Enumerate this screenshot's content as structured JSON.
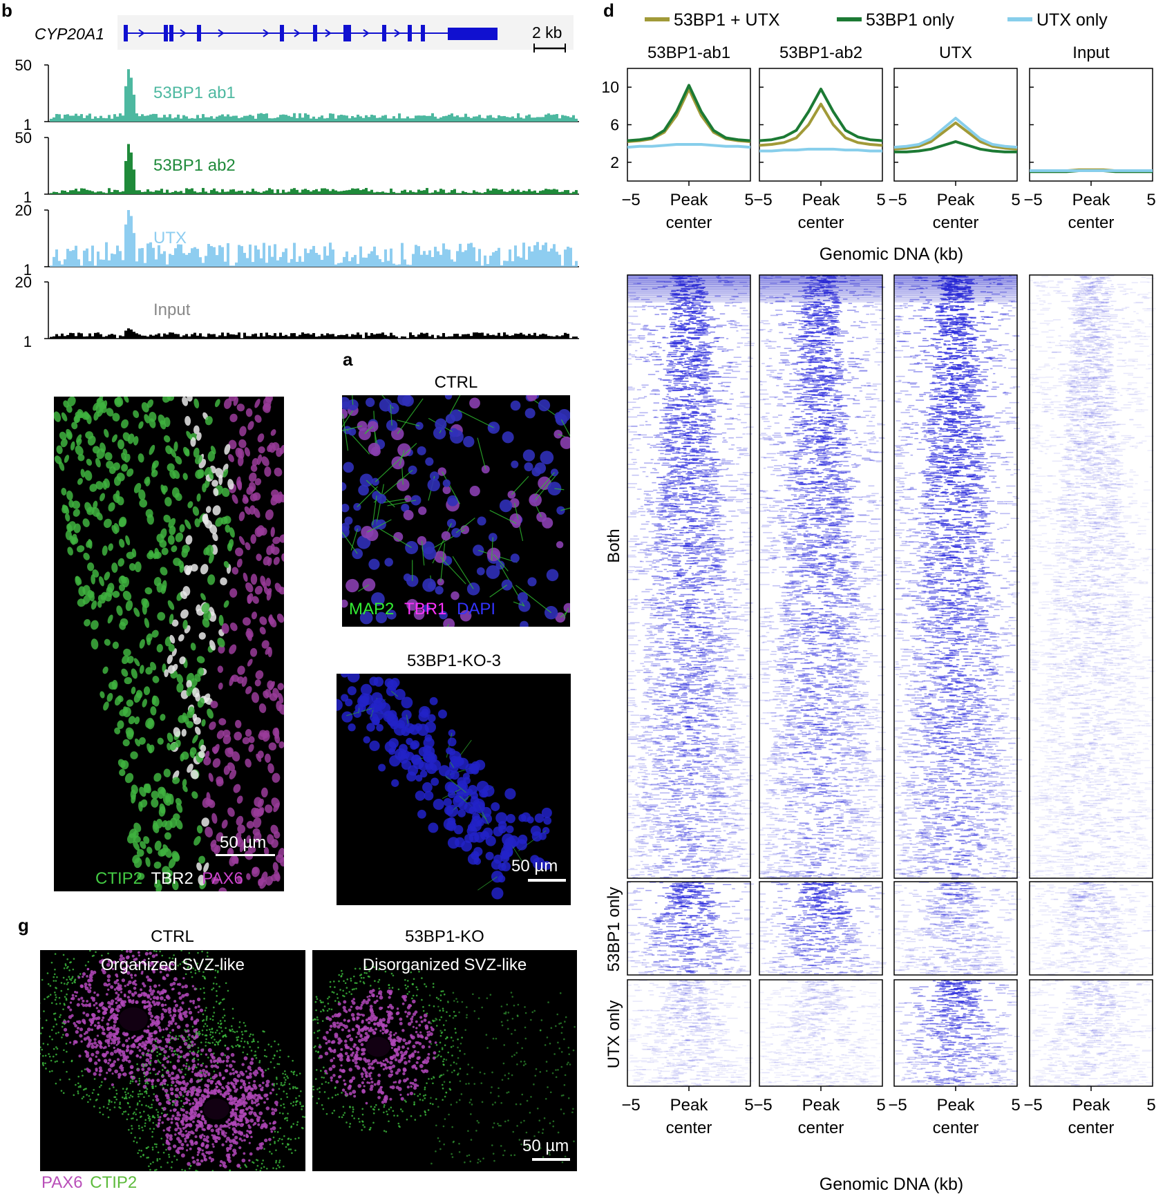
{
  "panel_b": {
    "letter": "b",
    "gene": "CYP20A1",
    "scale": "2 kb",
    "tracks": [
      {
        "label": "53BP1 ab1",
        "ymax": "50",
        "ymin": "1",
        "color": "#4db8a0",
        "peak": 0.9,
        "base": 0.1,
        "noise": 0.05
      },
      {
        "label": "53BP1 ab2",
        "ymax": "50",
        "ymin": "1",
        "color": "#1f8a3a",
        "peak": 0.9,
        "base": 0.06,
        "noise": 0.05
      },
      {
        "label": "UTX",
        "ymax": "20",
        "ymin": "1",
        "color": "#8ecdf0",
        "peak": 0.9,
        "base": 0.22,
        "noise": 0.22
      },
      {
        "label": "Input",
        "ymax": "20",
        "ymin": "1",
        "color": "#000000",
        "peak": 0.12,
        "base": 0.07,
        "noise": 0.04
      }
    ]
  },
  "panel_a": {
    "letter": "a",
    "ctrl_title": "CTRL",
    "ko_title": "53BP1-KO-3",
    "markers": [
      {
        "text": "MAP2",
        "color": "#33ee33"
      },
      {
        "text": "TBR1",
        "color": "#ff33ff"
      },
      {
        "text": "DAPI",
        "color": "#3333ff"
      }
    ],
    "scale": "50 µm"
  },
  "panel_left": {
    "markers": [
      {
        "text": "CTIP2",
        "color": "#44cc44"
      },
      {
        "text": "TBR2",
        "color": "#ffffff"
      },
      {
        "text": "PAX6",
        "color": "#cc44cc"
      }
    ],
    "scale": "50 µm"
  },
  "panel_g": {
    "letter": "g",
    "ctrl_title": "CTRL",
    "ko_title": "53BP1-KO",
    "ctrl_caption": "Organized SVZ-like",
    "ko_caption": "Disorganized SVZ-like",
    "scale": "50 µm",
    "legend": [
      {
        "text": "PAX6",
        "color": "#b94fb9"
      },
      {
        "text": "CTIP2",
        "color": "#5dbb3c"
      }
    ]
  },
  "panel_d": {
    "letter": "d",
    "legend": [
      {
        "text": "53BP1 + UTX",
        "color": "#a19a38"
      },
      {
        "text": "53BP1 only",
        "color": "#1c7a34"
      },
      {
        "text": "UTX only",
        "color": "#87ceeb"
      }
    ],
    "columns": [
      "53BP1-ab1",
      "53BP1-ab2",
      "UTX",
      "Input"
    ],
    "y_ticks": [
      "10",
      "6",
      "2"
    ],
    "x_tick_left": "−5",
    "x_tick_center": [
      "Peak",
      "center"
    ],
    "x_tick_right": "5",
    "xlabel": "Genomic DNA (kb)",
    "row_labels": [
      "Both",
      "53BP1 only",
      "UTX only"
    ]
  },
  "chart_data": {
    "type": "line",
    "title": "",
    "xlabel": "Genomic DNA (kb)",
    "ylabel": "",
    "xlim": [
      -5,
      5
    ],
    "ylim": [
      0,
      12
    ],
    "x": [
      -5,
      -4,
      -3,
      -2,
      -1,
      0,
      1,
      2,
      3,
      4,
      5
    ],
    "panels": [
      {
        "name": "53BP1-ab1",
        "series": [
          {
            "name": "53BP1 + UTX",
            "values": [
              4.2,
              4.3,
              4.5,
              5.2,
              7.0,
              9.8,
              7.0,
              5.2,
              4.5,
              4.3,
              4.2
            ]
          },
          {
            "name": "53BP1 only",
            "values": [
              4.3,
              4.4,
              4.6,
              5.4,
              7.4,
              10.2,
              7.4,
              5.4,
              4.6,
              4.4,
              4.3
            ]
          },
          {
            "name": "UTX only",
            "values": [
              3.6,
              3.7,
              3.7,
              3.8,
              3.9,
              3.9,
              3.9,
              3.8,
              3.7,
              3.7,
              3.6
            ]
          }
        ]
      },
      {
        "name": "53BP1-ab2",
        "series": [
          {
            "name": "53BP1 + UTX",
            "values": [
              3.8,
              3.9,
              4.1,
              4.6,
              6.0,
              8.2,
              6.0,
              4.6,
              4.1,
              3.9,
              3.8
            ]
          },
          {
            "name": "53BP1 only",
            "values": [
              4.3,
              4.4,
              4.7,
              5.4,
              7.4,
              9.8,
              7.4,
              5.4,
              4.7,
              4.4,
              4.3
            ]
          },
          {
            "name": "UTX only",
            "values": [
              3.2,
              3.2,
              3.3,
              3.3,
              3.4,
              3.4,
              3.4,
              3.3,
              3.3,
              3.2,
              3.2
            ]
          }
        ]
      },
      {
        "name": "UTX",
        "series": [
          {
            "name": "53BP1 + UTX",
            "values": [
              3.4,
              3.5,
              3.7,
              4.2,
              5.2,
              6.2,
              5.2,
              4.2,
              3.7,
              3.5,
              3.4
            ]
          },
          {
            "name": "53BP1 only",
            "values": [
              3.1,
              3.1,
              3.2,
              3.4,
              3.8,
              4.2,
              3.8,
              3.4,
              3.2,
              3.1,
              3.1
            ]
          },
          {
            "name": "UTX only",
            "values": [
              3.6,
              3.7,
              3.9,
              4.5,
              5.6,
              6.7,
              5.6,
              4.5,
              3.9,
              3.7,
              3.6
            ]
          }
        ]
      },
      {
        "name": "Input",
        "series": [
          {
            "name": "53BP1 + UTX",
            "values": [
              1.1,
              1.1,
              1.1,
              1.1,
              1.2,
              1.2,
              1.2,
              1.1,
              1.1,
              1.1,
              1.1
            ]
          },
          {
            "name": "53BP1 only",
            "values": [
              1.0,
              1.0,
              1.0,
              1.0,
              1.1,
              1.1,
              1.1,
              1.0,
              1.0,
              1.0,
              1.0
            ]
          },
          {
            "name": "UTX only",
            "values": [
              1.1,
              1.1,
              1.1,
              1.1,
              1.1,
              1.1,
              1.1,
              1.1,
              1.1,
              1.1,
              1.1
            ]
          }
        ]
      }
    ],
    "heatmap_intensity": [
      {
        "column": "53BP1-ab1",
        "Both": 0.75,
        "53BP1 only": 0.75,
        "UTX only": 0.15
      },
      {
        "column": "53BP1-ab2",
        "Both": 0.7,
        "53BP1 only": 0.7,
        "UTX only": 0.1
      },
      {
        "column": "UTX",
        "Both": 0.85,
        "53BP1 only": 0.35,
        "UTX only": 0.7
      },
      {
        "column": "Input",
        "Both": 0.12,
        "53BP1 only": 0.12,
        "UTX only": 0.12
      }
    ]
  }
}
